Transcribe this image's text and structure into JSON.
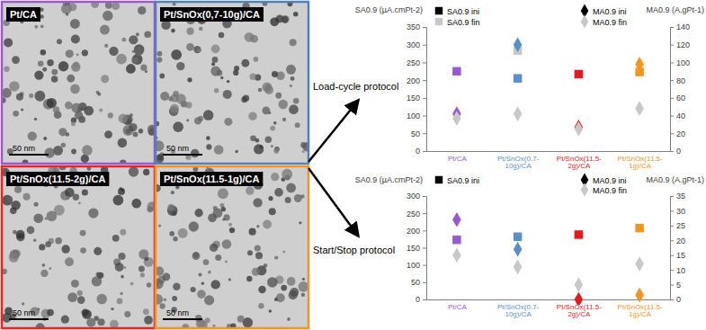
{
  "panels": [
    {
      "label": "Pt/CA",
      "color": "#9b59d0",
      "scale_bar": "50 nm"
    },
    {
      "label": "Pt/SnOx(0,7-10g)/CA",
      "color": "#4f81bd",
      "scale_bar": "50 nm"
    },
    {
      "label": "Pt/SnOx(11.5-2g)/CA",
      "color": "#e32626",
      "scale_bar": "50 nm"
    },
    {
      "label": "Pt/SnOx(11.5-1g)/CA",
      "color": "#f39325",
      "scale_bar": "50 nm"
    }
  ],
  "chart_data": [
    {
      "type": "scatter",
      "title": "Load-cycle protocol",
      "categories": [
        "Pt/CA",
        "Pt/SnOx(0.7-10g)/CA",
        "Pt/SnOx(11.5-2g)/CA",
        "Pt/SnOx(11.5-1g)/CA"
      ],
      "y_label": "SA0.9 (µA.cmPt-2)",
      "y2_label": "MA0.9 (A.gPt-1)",
      "ylim": [
        0,
        350
      ],
      "yticks": [
        0,
        50,
        100,
        150,
        200,
        250,
        300,
        350
      ],
      "y2lim": [
        0,
        140
      ],
      "y2ticks": [
        0,
        20,
        40,
        60,
        80,
        100,
        120,
        140
      ],
      "legend": "top",
      "series": [
        {
          "name": "SA0.9 ini",
          "marker": "square",
          "color": "#000000",
          "colors": [
            "#9b59d0",
            "#5b8fc8",
            "#e31a1c",
            "#f5951f"
          ],
          "values": [
            225,
            205,
            217,
            223
          ]
        },
        {
          "name": "SA0.9 fin",
          "marker": "square",
          "color": "#c8c8c8",
          "values": [
            null,
            283,
            null,
            null
          ]
        },
        {
          "name": "MA0.9 ini",
          "marker": "diamond",
          "axis": "y2",
          "color": "#000000",
          "colors": [
            "#9b59d0",
            "#5b8fc8",
            "#e31a1c",
            "#f5951f"
          ],
          "values": [
            42,
            120,
            27,
            98
          ]
        },
        {
          "name": "MA0.9 fin",
          "marker": "diamond",
          "axis": "y2",
          "color": "#c8c8c8",
          "values": [
            37,
            42,
            25,
            48
          ]
        }
      ]
    },
    {
      "type": "scatter",
      "title": "Start/Stop protocol",
      "categories": [
        "Pt/CA",
        "Pt/SnOx(0.7-10g)/CA",
        "Pt/SnOx(11.5-2g)/CA",
        "Pt/SnOx(11.5-1g)/CA"
      ],
      "y_label": "SA0.9 (µA.cmPt-2)",
      "y2_label": "MA0.9 (A.gPt-1)",
      "ylim": [
        0,
        300
      ],
      "yticks": [
        0,
        50,
        100,
        150,
        200,
        250,
        300
      ],
      "y2lim": [
        0,
        35
      ],
      "y2ticks": [
        0,
        5,
        10,
        15,
        20,
        25,
        30,
        35
      ],
      "legend": "top",
      "series": [
        {
          "name": "SA0.9 ini",
          "marker": "square",
          "color": "#000000",
          "colors": [
            "#9b59d0",
            "#5b8fc8",
            "#e31a1c",
            "#f5951f"
          ],
          "values": [
            173,
            182,
            188,
            207
          ]
        },
        {
          "name": "MA0.9 ini",
          "marker": "diamond",
          "axis": "y2",
          "color": "#000000",
          "colors": [
            "#9b59d0",
            "#5b8fc8",
            "#e31a1c",
            "#f5951f"
          ],
          "values": [
            27,
            17,
            0,
            1.5
          ]
        },
        {
          "name": "MA0.9 fin",
          "marker": "diamond",
          "axis": "y2",
          "color": "#c8c8c8",
          "values": [
            15,
            11,
            5,
            12
          ]
        }
      ]
    }
  ]
}
